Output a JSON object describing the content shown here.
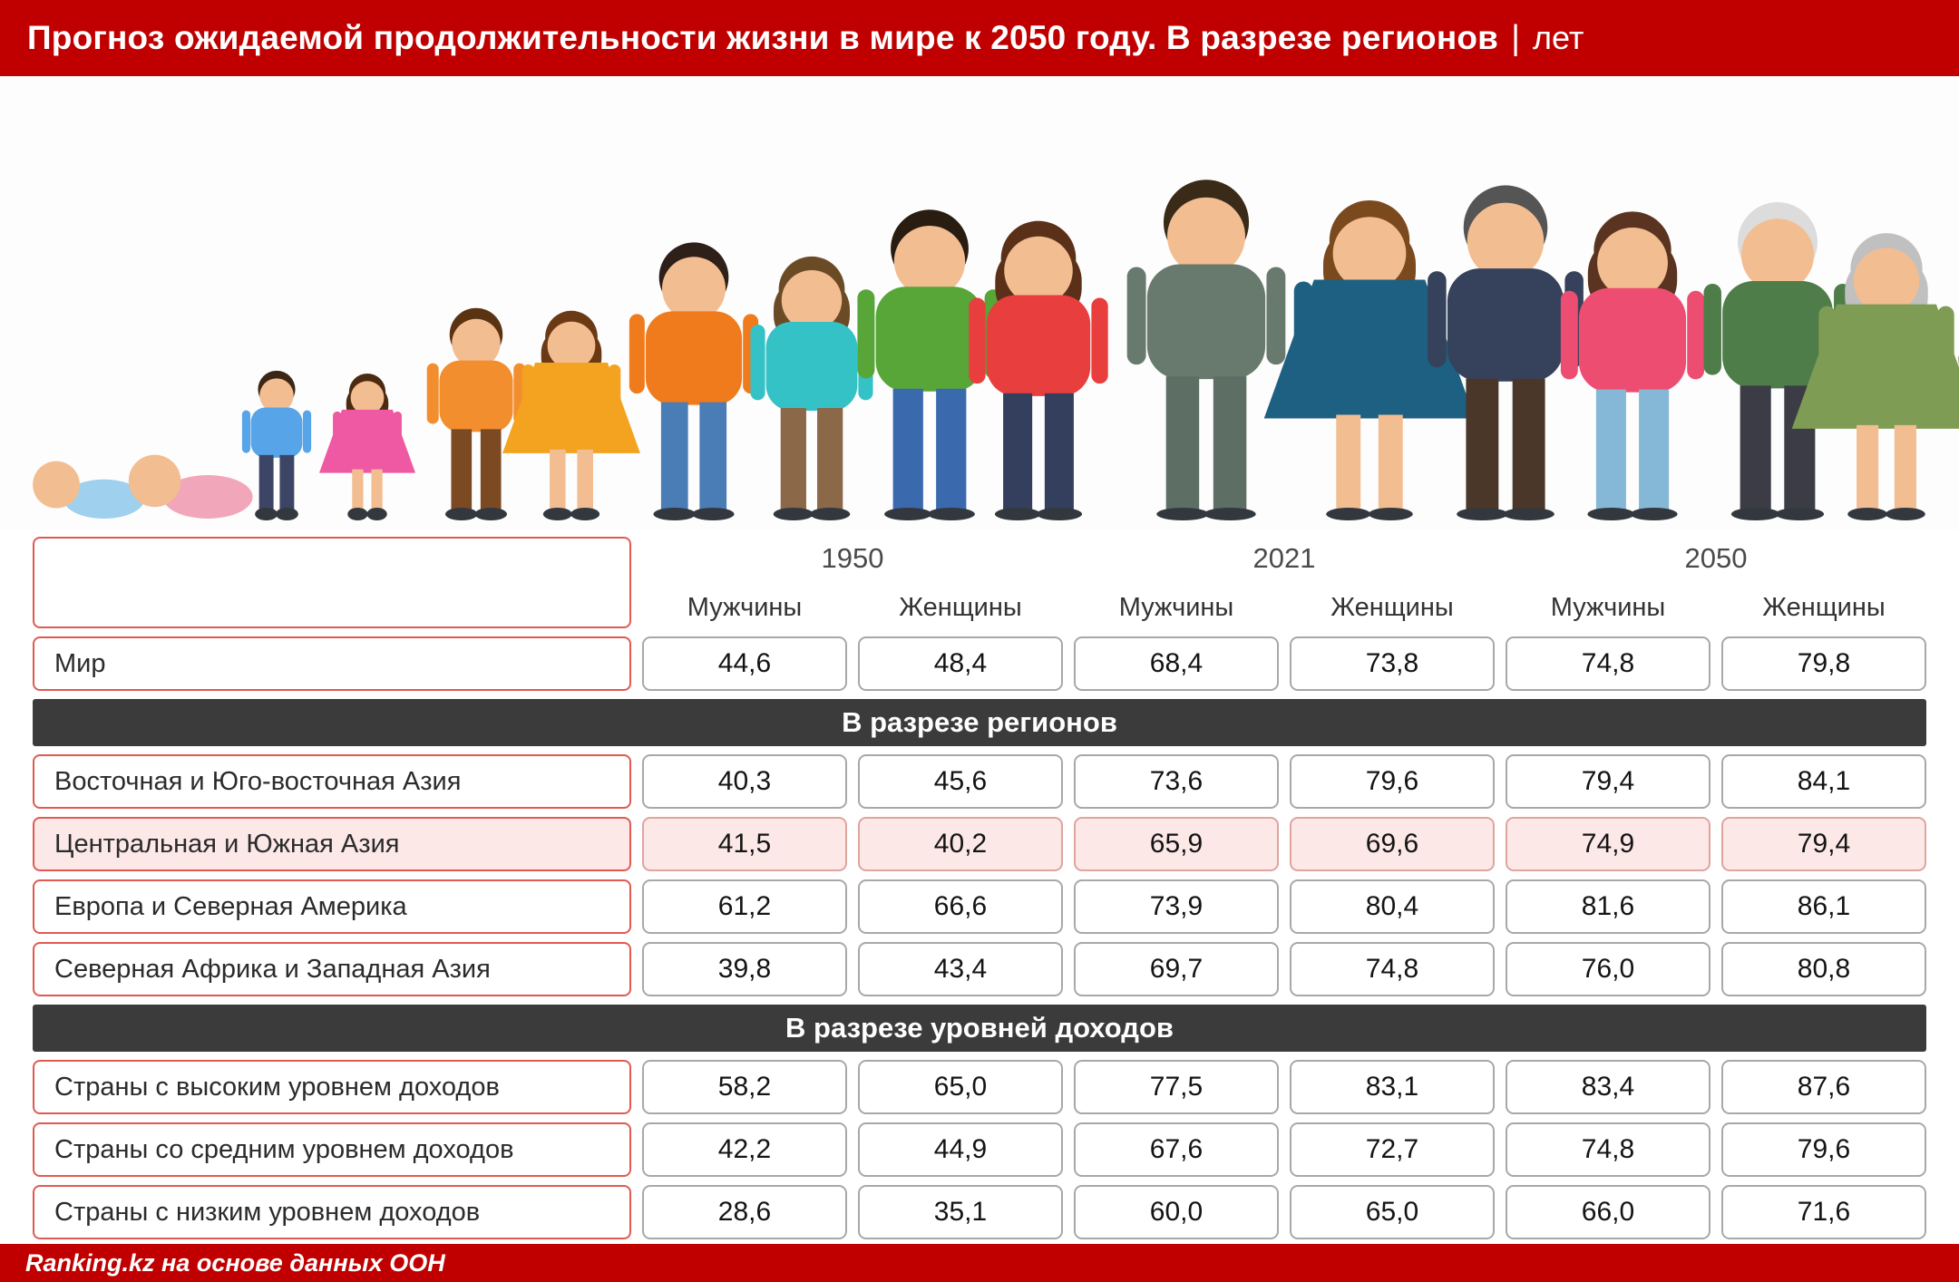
{
  "accent_color": "#c00000",
  "section_bar_color": "#3b3b3b",
  "highlight_color": "#fce9e7",
  "header": {
    "title": "Прогноз ожидаемой продолжительности жизни в мире к 2050 году. В разрезе регионов",
    "separator": "|",
    "unit": "лет"
  },
  "footer": {
    "source": "Ranking.kz на основе данных ООН"
  },
  "illustration": {
    "figures": [
      "baby-crawling",
      "infant-crawling",
      "toddler-boy",
      "toddler-girl",
      "boy",
      "girl",
      "teen-boy",
      "teen-girl",
      "young-man",
      "young-woman",
      "adult-man-suit",
      "adult-woman-dress",
      "middle-aged-man",
      "middle-aged-woman",
      "elderly-man",
      "elderly-woman"
    ]
  },
  "table": {
    "years": [
      "1950",
      "2021",
      "2050"
    ],
    "gender_headers": [
      "Мужчины",
      "Женщины",
      "Мужчины",
      "Женщины",
      "Мужчины",
      "Женщины"
    ],
    "world_row": {
      "label": "Мир",
      "values": [
        "44,6",
        "48,4",
        "68,4",
        "73,8",
        "74,8",
        "79,8"
      ]
    },
    "sections": [
      {
        "title": "В разрезе регионов",
        "rows": [
          {
            "label": "Восточная и Юго-восточная Азия",
            "values": [
              "40,3",
              "45,6",
              "73,6",
              "79,6",
              "79,4",
              "84,1"
            ]
          },
          {
            "label": "Центральная и Южная Азия",
            "values": [
              "41,5",
              "40,2",
              "65,9",
              "69,6",
              "74,9",
              "79,4"
            ],
            "highlight": true
          },
          {
            "label": "Европа и Северная Америка",
            "values": [
              "61,2",
              "66,6",
              "73,9",
              "80,4",
              "81,6",
              "86,1"
            ]
          },
          {
            "label": "Северная Африка и Западная Азия",
            "values": [
              "39,8",
              "43,4",
              "69,7",
              "74,8",
              "76,0",
              "80,8"
            ]
          }
        ]
      },
      {
        "title": "В разрезе уровней доходов",
        "rows": [
          {
            "label": "Страны с высоким уровнем доходов",
            "values": [
              "58,2",
              "65,0",
              "77,5",
              "83,1",
              "83,4",
              "87,6"
            ]
          },
          {
            "label": "Страны со средним уровнем доходов",
            "values": [
              "42,2",
              "44,9",
              "67,6",
              "72,7",
              "74,8",
              "79,6"
            ]
          },
          {
            "label": "Страны с низким уровнем доходов",
            "values": [
              "28,6",
              "35,1",
              "60,0",
              "65,0",
              "66,0",
              "71,6"
            ]
          }
        ]
      }
    ]
  },
  "chart_data": {
    "type": "table",
    "title": "Прогноз ожидаемой продолжительности жизни в мире к 2050 году. В разрезе регионов (лет)",
    "columns": [
      "1950 Мужчины",
      "1950 Женщины",
      "2021 Мужчины",
      "2021 Женщины",
      "2050 Мужчины",
      "2050 Женщины"
    ],
    "rows": [
      {
        "group": "",
        "label": "Мир",
        "values": [
          44.6,
          48.4,
          68.4,
          73.8,
          74.8,
          79.8
        ]
      },
      {
        "group": "В разрезе регионов",
        "label": "Восточная и Юго-восточная Азия",
        "values": [
          40.3,
          45.6,
          73.6,
          79.6,
          79.4,
          84.1
        ]
      },
      {
        "group": "В разрезе регионов",
        "label": "Центральная и Южная Азия",
        "values": [
          41.5,
          40.2,
          65.9,
          69.6,
          74.9,
          79.4
        ],
        "highlighted": true
      },
      {
        "group": "В разрезе регионов",
        "label": "Европа и Северная Америка",
        "values": [
          61.2,
          66.6,
          73.9,
          80.4,
          81.6,
          86.1
        ]
      },
      {
        "group": "В разрезе регионов",
        "label": "Северная Африка и Западная Азия",
        "values": [
          39.8,
          43.4,
          69.7,
          74.8,
          76.0,
          80.8
        ]
      },
      {
        "group": "В разрезе уровней доходов",
        "label": "Страны с высоким уровнем доходов",
        "values": [
          58.2,
          65.0,
          77.5,
          83.1,
          83.4,
          87.6
        ]
      },
      {
        "group": "В разрезе уровней доходов",
        "label": "Страны со средним уровнем доходов",
        "values": [
          42.2,
          44.9,
          67.6,
          72.7,
          74.8,
          79.6
        ]
      },
      {
        "group": "В разрезе уровней доходов",
        "label": "Страны с низким уровнем доходов",
        "values": [
          28.6,
          35.1,
          60.0,
          65.0,
          66.0,
          71.6
        ]
      }
    ],
    "source": "Ranking.kz на основе данных ООН"
  }
}
